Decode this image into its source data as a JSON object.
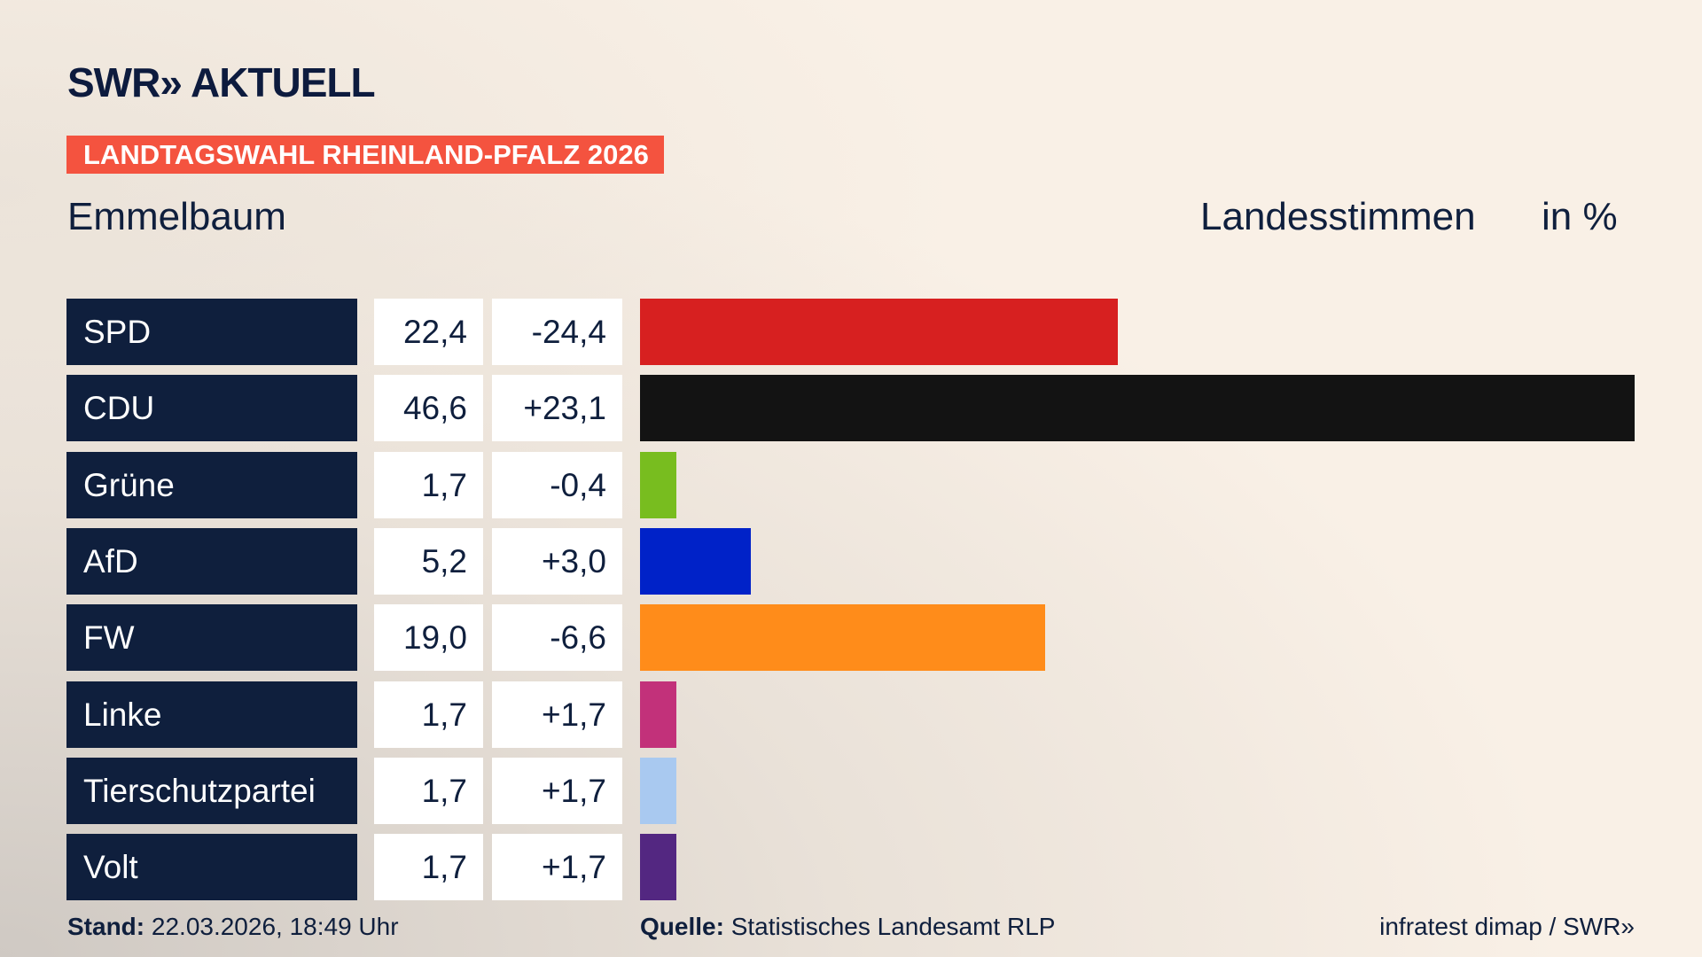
{
  "header": {
    "logo": "SWR» AKTUELL",
    "banner": "LANDTAGSWAHL RHEINLAND-PFALZ 2026"
  },
  "chart_data": {
    "type": "bar",
    "orientation": "horizontal",
    "subtitle": "Emmelbaum",
    "measure": "Landesstimmen",
    "unit": "in %",
    "categories": [
      "SPD",
      "CDU",
      "Grüne",
      "AfD",
      "FW",
      "Linke",
      "Tierschutzpartei",
      "Volt"
    ],
    "values": [
      22.4,
      46.6,
      1.7,
      5.2,
      19.0,
      1.7,
      1.7,
      1.7
    ],
    "value_labels": [
      "22,4",
      "46,6",
      "1,7",
      "5,2",
      "19,0",
      "1,7",
      "1,7",
      "1,7"
    ],
    "changes": [
      -24.4,
      23.1,
      -0.4,
      3.0,
      -6.6,
      1.7,
      1.7,
      1.7
    ],
    "change_labels": [
      "-24,4",
      "+23,1",
      "-0,4",
      "+3,0",
      "-6,6",
      "+1,7",
      "+1,7",
      "+1,7"
    ],
    "colors": [
      "#d72020",
      "#131313",
      "#78bd1f",
      "#0022c8",
      "#ff8c1a",
      "#c2317a",
      "#a9c9f0",
      "#532781"
    ]
  },
  "footer": {
    "stand_label": "Stand:",
    "stand": "22.03.2026, 18:49 Uhr",
    "source_label": "Quelle:",
    "source": "Statistisches Landesamt RLP",
    "credit": "infratest dimap / SWR»"
  }
}
